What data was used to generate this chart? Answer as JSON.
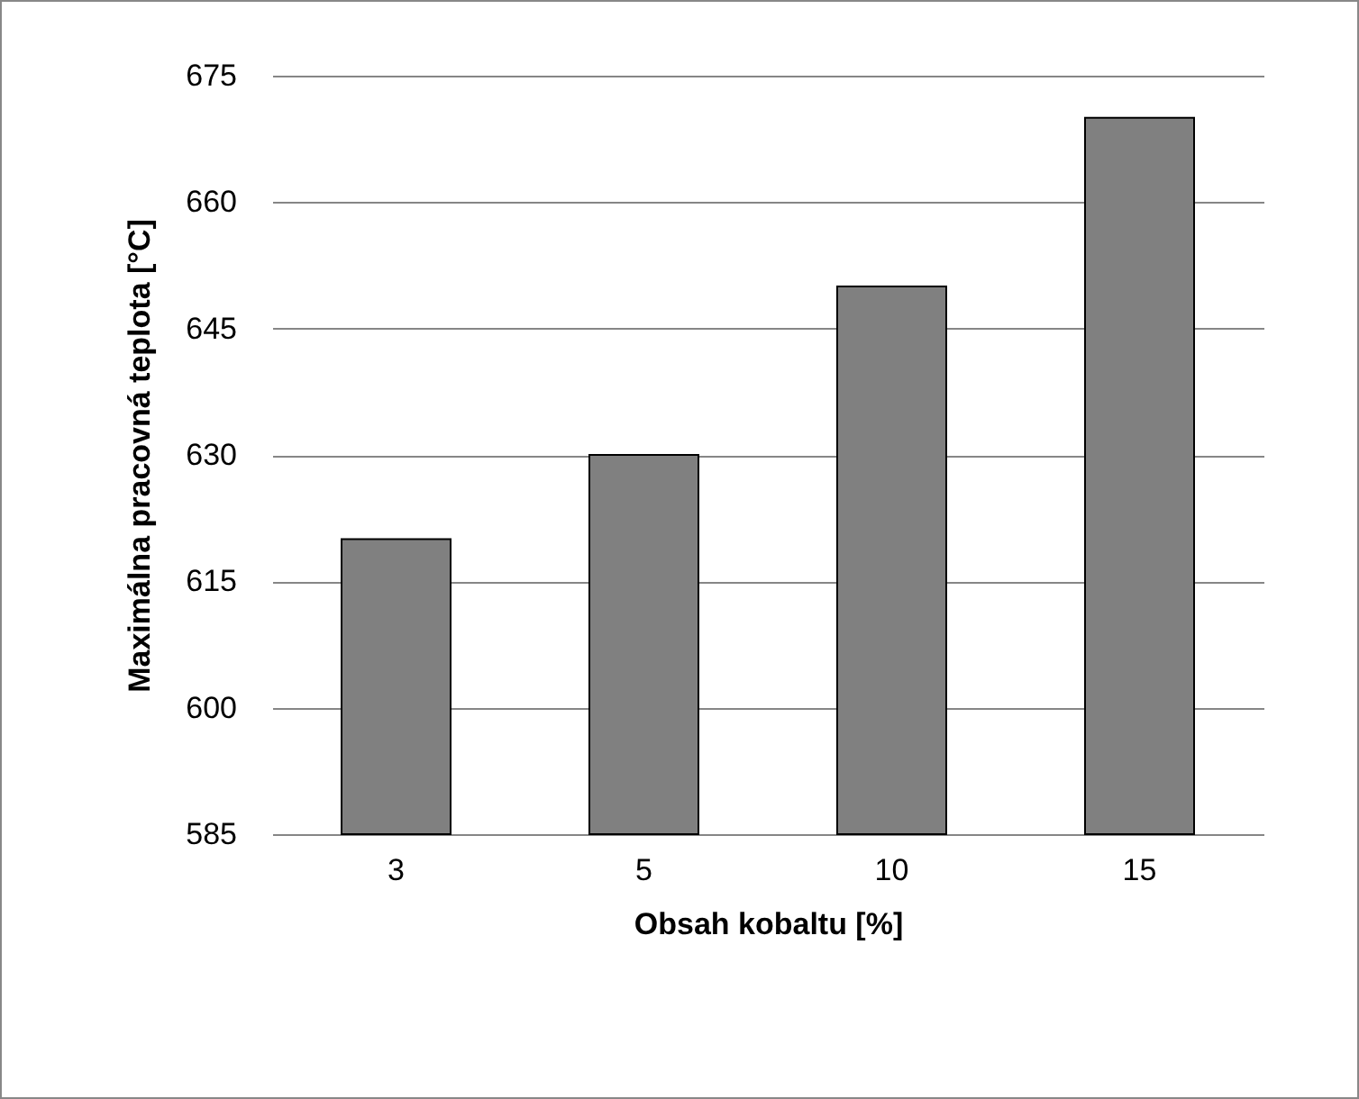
{
  "chart_data": {
    "type": "bar",
    "xlabel": "Obsah kobaltu [%]",
    "ylabel": "Maximálna pracovná teplota [°C]",
    "categories": [
      "3",
      "5",
      "10",
      "15"
    ],
    "values": [
      620,
      630,
      650,
      670
    ],
    "color": "#808080",
    "ylim": [
      585,
      675
    ],
    "yticks": [
      585,
      600,
      615,
      630,
      645,
      660,
      675
    ],
    "grid": "y"
  }
}
